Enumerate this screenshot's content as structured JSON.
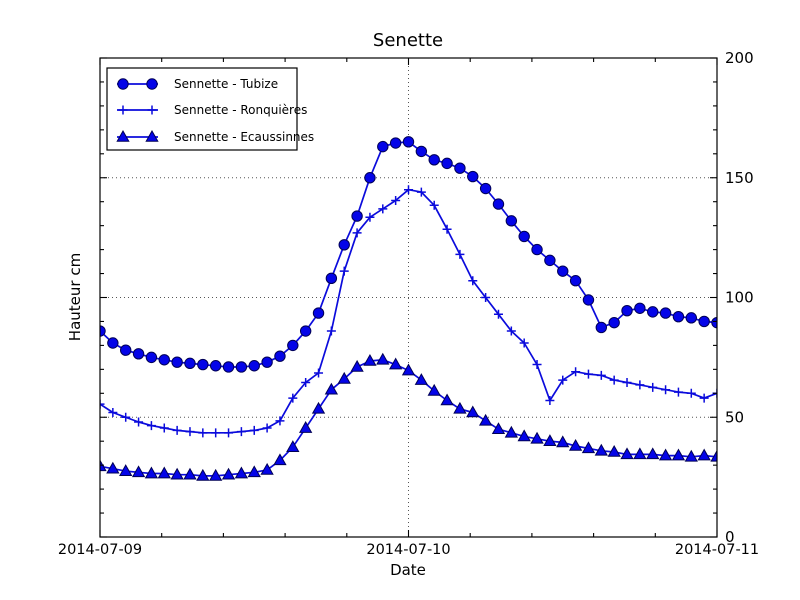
{
  "chart_data": {
    "type": "line",
    "title": "Senette",
    "xlabel": "Date",
    "ylabel": "Hauteur cm",
    "x_start": "2014-07-09 00:00",
    "x_interval_hours": 1,
    "n_points": 49,
    "x_axis": {
      "tick_labels": [
        "2014-07-09",
        "2014-07-10",
        "2014-07-11"
      ],
      "minor_ticks_between_majors": 4,
      "major_gridline_at": "2014-07-10"
    },
    "y_axis": {
      "range": [
        0,
        200
      ],
      "ticks": [
        0,
        50,
        100,
        150,
        200
      ],
      "labels_side": "right",
      "minor_ticks_between_majors": 4,
      "gridlines_at": [
        50,
        100,
        150
      ]
    },
    "grid": "dotted",
    "legend_position": "upper-left",
    "colors": {
      "line": "#0b0bdc",
      "marker_fill": "#0404e8",
      "marker_edge": "#000055",
      "grid": "#555555",
      "axis": "#000000"
    },
    "series": [
      {
        "name": "Sennette - Tubize",
        "marker": "circle",
        "values": [
          86,
          81,
          78,
          76.5,
          75,
          74,
          73,
          72.5,
          72,
          71.5,
          71,
          71,
          71.5,
          73,
          75.5,
          80,
          86,
          93.5,
          108,
          122,
          134,
          150,
          163,
          164.5,
          165,
          161,
          157.5,
          156,
          154,
          150.5,
          145.5,
          139,
          132,
          125.5,
          120,
          115.5,
          111,
          107,
          99,
          87.5,
          89.5,
          94.5,
          95.5,
          94,
          93.5,
          92,
          91.5,
          90,
          89.5
        ]
      },
      {
        "name": "Sennette - Ronquières",
        "marker": "plus",
        "values": [
          55.5,
          52,
          50,
          48,
          46.5,
          45.5,
          44.5,
          44,
          43.5,
          43.5,
          43.5,
          44,
          44.5,
          45.5,
          48.5,
          58,
          64.5,
          68.5,
          86,
          111,
          127,
          133.5,
          137,
          140.5,
          145,
          144,
          138.5,
          128.5,
          118,
          107,
          100,
          93,
          86,
          81,
          72,
          57,
          65.5,
          69,
          68,
          67.5,
          65.5,
          64.5,
          63.5,
          62.5,
          61.5,
          60.5,
          60,
          58,
          60
        ]
      },
      {
        "name": "Sennette - Ecaussinnes",
        "marker": "triangle",
        "values": [
          29.5,
          28.5,
          27.5,
          27,
          26.5,
          26.5,
          26,
          26,
          25.5,
          25.5,
          26,
          26.5,
          27,
          28,
          32,
          37.5,
          45.5,
          53.5,
          61.5,
          66,
          71,
          73.5,
          74,
          72,
          69.5,
          65.5,
          61,
          57,
          53.5,
          52,
          48.5,
          45,
          43.5,
          42,
          41,
          40,
          39.5,
          38,
          37,
          36,
          35.5,
          34.5,
          34.5,
          34.5,
          34,
          34,
          33.5,
          34,
          33.5
        ]
      }
    ]
  }
}
